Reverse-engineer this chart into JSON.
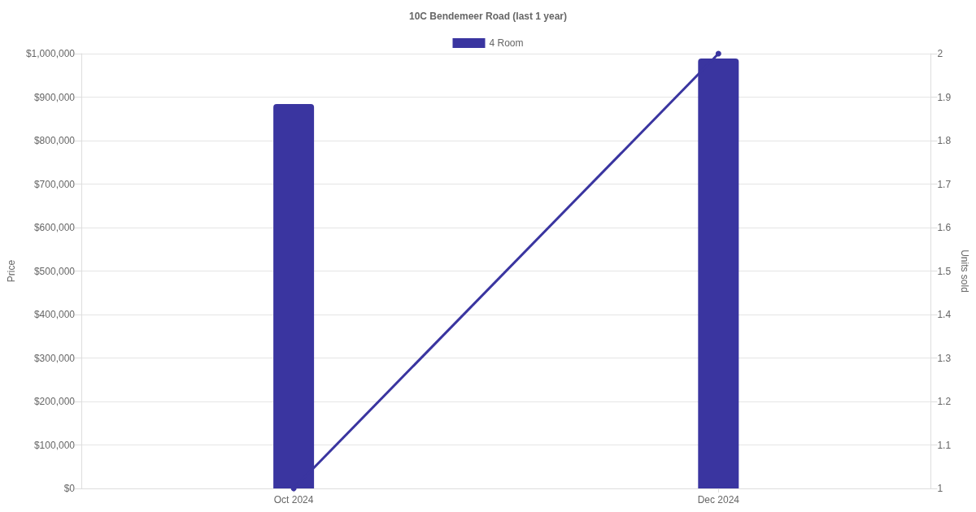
{
  "chart_data": {
    "type": "bar",
    "title": "10C Bendemeer Road (last 1 year)",
    "ylabel": "Price",
    "y2label": "Units sold",
    "categories": [
      "Oct 2024",
      "Dec 2024"
    ],
    "series": [
      {
        "name": "4 Room",
        "color": "#3a35a0",
        "values": [
          884000,
          989000
        ]
      },
      {
        "type": "line",
        "axis": "y2",
        "color": "#3a35a0",
        "values": [
          1,
          2
        ]
      }
    ],
    "ylim": [
      0,
      1000000
    ],
    "yticks": [
      {
        "value": 0,
        "label": "$0"
      },
      {
        "value": 100000,
        "label": "$100,000"
      },
      {
        "value": 200000,
        "label": "$200,000"
      },
      {
        "value": 300000,
        "label": "$300,000"
      },
      {
        "value": 400000,
        "label": "$400,000"
      },
      {
        "value": 500000,
        "label": "$500,000"
      },
      {
        "value": 600000,
        "label": "$600,000"
      },
      {
        "value": 700000,
        "label": "$700,000"
      },
      {
        "value": 800000,
        "label": "$800,000"
      },
      {
        "value": 900000,
        "label": "$900,000"
      },
      {
        "value": 1000000,
        "label": "$1,000,000"
      }
    ],
    "y2lim": [
      1,
      2
    ],
    "y2ticks": [
      1,
      1.1,
      1.2,
      1.3,
      1.4,
      1.5,
      1.6,
      1.7,
      1.8,
      1.9,
      2
    ],
    "grid": "y",
    "legend": "top",
    "marker": "circle",
    "line_style": "solid"
  }
}
